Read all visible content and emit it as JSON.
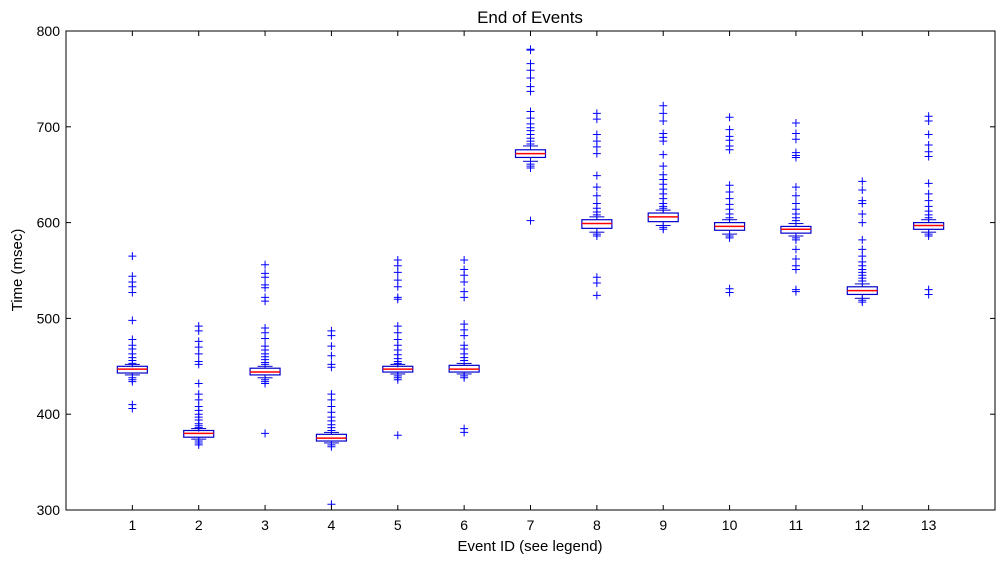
{
  "chart_data": {
    "type": "boxplot",
    "title": "End of Events",
    "xlabel": "Event ID (see legend)",
    "ylabel": "Time (msec)",
    "ylim": [
      300,
      800
    ],
    "yticks": [
      300,
      400,
      500,
      600,
      700,
      800
    ],
    "categories": [
      "1",
      "2",
      "3",
      "4",
      "5",
      "6",
      "7",
      "8",
      "9",
      "10",
      "11",
      "12",
      "13"
    ],
    "box_color": "#0000cc",
    "median_color": "#ff0000",
    "flier_color": "#0000ff",
    "boxes": [
      {
        "q1": 443,
        "median": 447,
        "q3": 450,
        "whisker_low": 441,
        "whisker_high": 452,
        "fliers": [
          565,
          544,
          538,
          533,
          527,
          498,
          478,
          472,
          468,
          463,
          459,
          456,
          453,
          438,
          436,
          434,
          410,
          406
        ]
      },
      {
        "q1": 376,
        "median": 380,
        "q3": 383,
        "whisker_low": 374,
        "whisker_high": 385,
        "fliers": [
          492,
          487,
          476,
          470,
          463,
          455,
          452,
          432,
          421,
          415,
          408,
          404,
          400,
          397,
          394,
          390,
          388,
          386,
          372,
          370,
          368
        ]
      },
      {
        "q1": 441,
        "median": 444,
        "q3": 448,
        "whisker_low": 438,
        "whisker_high": 450,
        "fliers": [
          556,
          547,
          543,
          535,
          532,
          522,
          518,
          490,
          485,
          479,
          471,
          467,
          463,
          460,
          457,
          454,
          452,
          436,
          434,
          432,
          380
        ]
      },
      {
        "q1": 372,
        "median": 375,
        "q3": 379,
        "whisker_low": 370,
        "whisker_high": 381,
        "fliers": [
          487,
          482,
          471,
          461,
          452,
          449,
          421,
          415,
          408,
          402,
          397,
          393,
          389,
          386,
          383,
          368,
          366,
          306
        ]
      },
      {
        "q1": 444,
        "median": 447,
        "q3": 450,
        "whisker_low": 442,
        "whisker_high": 452,
        "fliers": [
          561,
          555,
          548,
          540,
          533,
          522,
          520,
          492,
          485,
          478,
          472,
          467,
          462,
          458,
          455,
          453,
          440,
          438,
          436,
          378
        ]
      },
      {
        "q1": 444,
        "median": 447,
        "q3": 451,
        "whisker_low": 442,
        "whisker_high": 453,
        "fliers": [
          561,
          551,
          545,
          538,
          528,
          522,
          494,
          488,
          482,
          472,
          468,
          463,
          459,
          456,
          440,
          438,
          385,
          381
        ]
      },
      {
        "q1": 668,
        "median": 672,
        "q3": 676,
        "whisker_low": 664,
        "whisker_high": 680,
        "fliers": [
          781,
          780,
          766,
          759,
          751,
          742,
          737,
          716,
          709,
          703,
          699,
          696,
          692,
          688,
          685,
          682,
          661,
          659,
          657,
          602
        ]
      },
      {
        "q1": 594,
        "median": 599,
        "q3": 603,
        "whisker_low": 590,
        "whisker_high": 606,
        "fliers": [
          714,
          708,
          692,
          685,
          679,
          672,
          649,
          637,
          628,
          620,
          615,
          611,
          608,
          588,
          586,
          543,
          537,
          524
        ]
      },
      {
        "q1": 601,
        "median": 606,
        "q3": 610,
        "whisker_low": 597,
        "whisker_high": 613,
        "fliers": [
          722,
          714,
          706,
          693,
          689,
          685,
          671,
          659,
          650,
          645,
          640,
          635,
          630,
          625,
          620,
          617,
          615,
          595,
          593
        ]
      },
      {
        "q1": 592,
        "median": 596,
        "q3": 600,
        "whisker_low": 588,
        "whisker_high": 603,
        "fliers": [
          710,
          697,
          690,
          686,
          680,
          676,
          639,
          632,
          625,
          619,
          614,
          609,
          605,
          586,
          584,
          531,
          527
        ]
      },
      {
        "q1": 589,
        "median": 593,
        "q3": 596,
        "whisker_low": 586,
        "whisker_high": 599,
        "fliers": [
          704,
          693,
          687,
          673,
          670,
          668,
          637,
          628,
          620,
          614,
          609,
          605,
          602,
          584,
          582,
          572,
          562,
          555,
          551,
          530,
          528
        ]
      },
      {
        "q1": 525,
        "median": 529,
        "q3": 533,
        "whisker_low": 521,
        "whisker_high": 536,
        "fliers": [
          643,
          634,
          623,
          620,
          609,
          600,
          582,
          572,
          565,
          559,
          555,
          551,
          548,
          545,
          542,
          539,
          519,
          517
        ]
      },
      {
        "q1": 593,
        "median": 597,
        "q3": 600,
        "whisker_low": 590,
        "whisker_high": 603,
        "fliers": [
          711,
          706,
          692,
          681,
          674,
          669,
          641,
          630,
          623,
          617,
          612,
          608,
          605,
          588,
          586,
          530,
          525
        ]
      }
    ]
  }
}
